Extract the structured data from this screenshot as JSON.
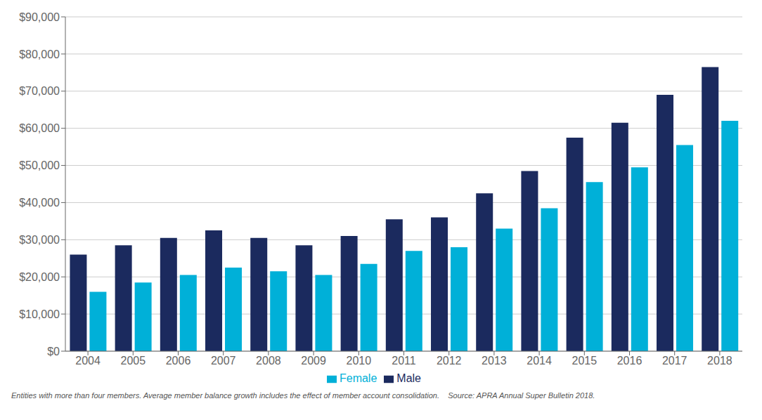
{
  "chart_data": {
    "type": "bar",
    "categories": [
      "2004",
      "2005",
      "2006",
      "2007",
      "2008",
      "2009",
      "2010",
      "2011",
      "2012",
      "2013",
      "2014",
      "2015",
      "2016",
      "2017",
      "2018"
    ],
    "series": [
      {
        "name": "Male",
        "color": "#1b2a5e",
        "values": [
          26000,
          28500,
          30500,
          32500,
          30500,
          28500,
          31000,
          35500,
          36000,
          42500,
          48500,
          57500,
          61500,
          69000,
          76500
        ]
      },
      {
        "name": "Female",
        "color": "#00b0d8",
        "values": [
          16000,
          18500,
          20500,
          22500,
          21500,
          20500,
          23500,
          27000,
          28000,
          33000,
          38500,
          45500,
          49500,
          55500,
          62000
        ]
      }
    ],
    "ylim": [
      0,
      90000
    ],
    "yticks": [
      {
        "value": 0,
        "label": "$0"
      },
      {
        "value": 10000,
        "label": "$10,000"
      },
      {
        "value": 20000,
        "label": "$20,000"
      },
      {
        "value": 30000,
        "label": "$30,000"
      },
      {
        "value": 40000,
        "label": "$40,000"
      },
      {
        "value": 50000,
        "label": "$50,000"
      },
      {
        "value": 60000,
        "label": "$60,000"
      },
      {
        "value": 70000,
        "label": "$70,000"
      },
      {
        "value": 80000,
        "label": "$80,000"
      },
      {
        "value": 90000,
        "label": "$90,000"
      }
    ],
    "grid": true,
    "legend": "bottom",
    "annotations": [
      "Entities with more than four members. Average member balance growth includes the effect of member account consolidation.    Source: APRA Annual Super Bulletin 2018."
    ]
  }
}
